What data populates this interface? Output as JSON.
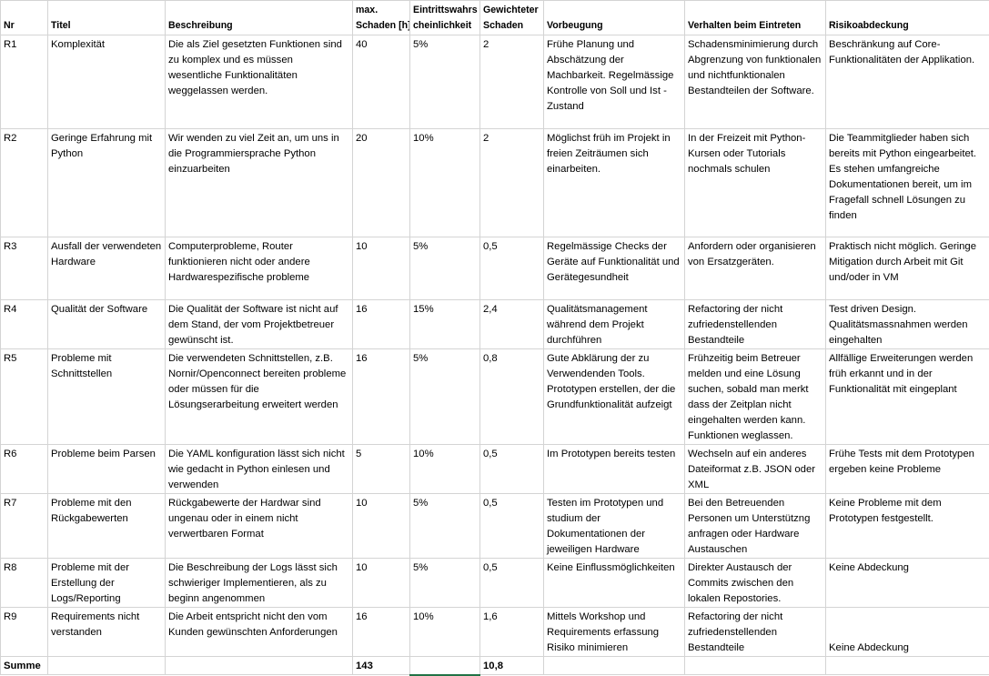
{
  "headers": {
    "nr": "Nr",
    "titel": "Titel",
    "beschreibung": "Beschreibung",
    "max_schaden_1": "max.",
    "max_schaden_2": "Schaden [h]",
    "eintritt_1": "Eintrittswahrs",
    "eintritt_2": "cheinlichkeit",
    "gewichtet_1": "Gewichteter",
    "gewichtet_2": "Schaden",
    "vorbeugung": "Vorbeugung",
    "verhalten": "Verhalten beim Eintreten",
    "risikoabdeckung": "Risikoabdeckung"
  },
  "rows": [
    {
      "nr": "R1",
      "titel": "Komplexität",
      "beschreibung": "Die als Ziel gesetzten Funktionen sind zu komplex und es müssen wesentliche Funktionalitäten weggelassen werden.",
      "max": "40",
      "prob": "5%",
      "weighted": "2",
      "vorbeugung": "Frühe Planung und Abschätzung der Machbarkeit. Regelmässige Kontrolle von Soll und Ist -Zustand",
      "verhalten": "Schadensminimierung durch Abgrenzung von funktionalen und nichtfunktionalen Bestandteilen der Software.",
      "abdeckung": "Beschränkung auf Core-Funktionalitäten der Applikation."
    },
    {
      "nr": "R2",
      "titel": "Geringe Erfahrung mit Python",
      "beschreibung": "Wir wenden zu viel Zeit an, um uns in die Programmiersprache Python einzuarbeiten",
      "max": "20",
      "prob": "10%",
      "weighted": "2",
      "vorbeugung": "Möglichst früh im Projekt in freien Zeiträumen sich einarbeiten.",
      "verhalten": "In der Freizeit mit Python-Kursen oder Tutorials nochmals schulen",
      "abdeckung": "Die Teammitglieder haben sich bereits mit Python eingearbeitet. Es stehen umfangreiche Dokumentationen bereit, um im Fragefall schnell Lösungen zu finden"
    },
    {
      "nr": "R3",
      "titel": "Ausfall der verwendeten Hardware",
      "beschreibung": "Computerprobleme, Router funktionieren nicht oder andere Hardwarespezifische probleme",
      "max": "10",
      "prob": "5%",
      "weighted": "0,5",
      "vorbeugung": "Regelmässige Checks der Geräte auf Funktionalität und Gerätegesundheit",
      "verhalten": "Anfordern oder organisieren von Ersatzgeräten.",
      "abdeckung": "Praktisch nicht möglich. Geringe Mitigation durch Arbeit mit Git und/oder in VM"
    },
    {
      "nr": "R4",
      "titel": "Qualität der Software",
      "beschreibung": "Die Qualität der Software ist nicht auf dem Stand, der vom Projektbetreuer gewünscht ist.",
      "max": "16",
      "prob": "15%",
      "weighted": "2,4",
      "vorbeugung": "Qualitätsmanagement während dem Projekt durchführen",
      "verhalten": "Refactoring der nicht zufriedenstellenden Bestandteile",
      "abdeckung": "Test driven Design. Qualitätsmassnahmen werden eingehalten"
    },
    {
      "nr": "R5",
      "titel": "Probleme mit Schnittstellen",
      "beschreibung": "Die verwendeten Schnittstellen, z.B. Nornir/Openconnect bereiten probleme oder müssen für die Lösungserarbeitung erweitert werden",
      "max": "16",
      "prob": "5%",
      "weighted": "0,8",
      "vorbeugung": "Gute Abklärung der zu Verwendenden Tools. Prototypen erstellen, der die Grundfunktionalität aufzeigt",
      "verhalten": "Frühzeitig beim Betreuer melden und eine Lösung suchen, sobald man merkt dass der Zeitplan nicht eingehalten werden kann. Funktionen weglassen.",
      "abdeckung": "Allfällige Erweiterungen werden früh erkannt und in der Funktionalität mit eingeplant"
    },
    {
      "nr": "R6",
      "titel": "Probleme beim Parsen",
      "beschreibung": "Die YAML konfiguration lässt sich nicht wie gedacht in Python einlesen und verwenden",
      "max": "5",
      "prob": "10%",
      "weighted": "0,5",
      "vorbeugung": "Im Prototypen bereits testen",
      "verhalten": "Wechseln auf ein anderes Dateiformat z.B. JSON oder XML",
      "abdeckung": "Frühe Tests mit dem Prototypen ergeben keine Probleme"
    },
    {
      "nr": "R7",
      "titel": "Probleme mit den Rückgabewerten",
      "beschreibung": "Rückgabewerte der Hardwar sind ungenau oder in einem nicht verwertbaren Format",
      "max": "10",
      "prob": "5%",
      "weighted": "0,5",
      "vorbeugung": "Testen im Prototypen und studium der Dokumentationen der jeweiligen Hardware",
      "verhalten": "Bei den Betreuenden Personen um Unterstützng anfragen oder Hardware Austauschen",
      "abdeckung": "Keine Probleme mit dem Prototypen festgestellt."
    },
    {
      "nr": "R8",
      "titel": "Probleme mit der Erstellung der Logs/Reporting",
      "beschreibung": "Die Beschreibung der Logs lässt sich schwieriger Implementieren, als zu beginn angenommen",
      "max": "10",
      "prob": "5%",
      "weighted": "0,5",
      "vorbeugung": "Keine Einflussmöglichkeiten",
      "verhalten": "Direkter Austausch der Commits zwischen den lokalen Repostories.",
      "abdeckung": "Keine Abdeckung"
    },
    {
      "nr": "R9",
      "titel": "Requirements nicht verstanden",
      "beschreibung": "Die Arbeit entspricht nicht den vom Kunden gewünschten Anforderungen",
      "max": "16",
      "prob": "10%",
      "weighted": "1,6",
      "vorbeugung": "Mittels Workshop und Requirements erfassung Risiko minimieren",
      "verhalten": "Refactoring der nicht zufriedenstellenden Bestandteile",
      "abdeckung": "Keine Abdeckung"
    }
  ],
  "sum": {
    "label": "Summe",
    "max_total": "143",
    "weighted_total": "10,8"
  }
}
